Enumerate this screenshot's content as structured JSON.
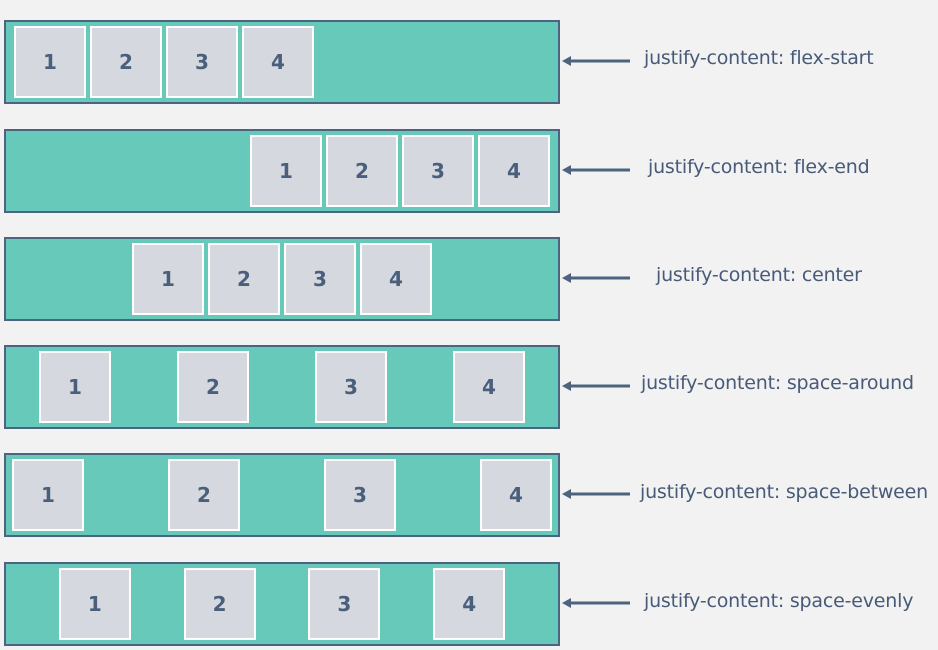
{
  "examples": [
    {
      "caption": "justify-content: flex-start",
      "items": [
        "1",
        "2",
        "3",
        "4"
      ]
    },
    {
      "caption": "justify-content: flex-end",
      "items": [
        "1",
        "2",
        "3",
        "4"
      ]
    },
    {
      "caption": "justify-content: center",
      "items": [
        "1",
        "2",
        "3",
        "4"
      ]
    },
    {
      "caption": "justify-content: space-around",
      "items": [
        "1",
        "2",
        "3",
        "4"
      ]
    },
    {
      "caption": "justify-content: space-between",
      "items": [
        "1",
        "2",
        "3",
        "4"
      ]
    },
    {
      "caption": "justify-content: space-evenly",
      "items": [
        "1",
        "2",
        "3",
        "4"
      ]
    }
  ],
  "colors": {
    "background": "#f2f2f2",
    "container_fill": "#66c9b9",
    "container_border": "#4d6480",
    "item_fill": "#d5d9df",
    "item_border": "#ffffff",
    "text": "#4a5f7c",
    "arrow": "#4d6480"
  }
}
